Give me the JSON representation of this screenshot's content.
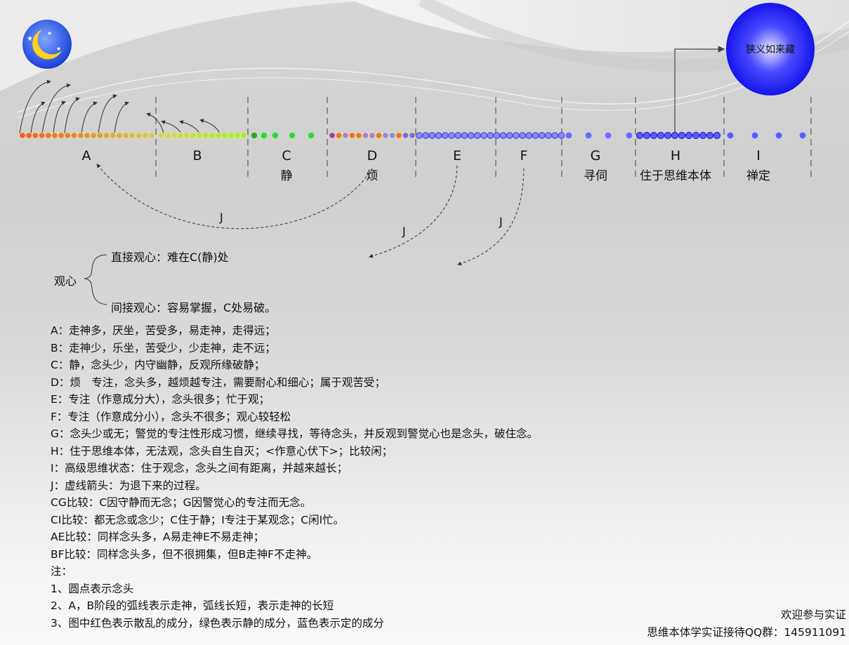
{
  "colors": {
    "scattered": "#e8503a",
    "calm": "#33d633",
    "settled": "#4848ff",
    "ball": "#1010ee"
  },
  "big_ball": {
    "label": "狭义如来藏"
  },
  "stages": [
    {
      "letter": "A",
      "sub": ""
    },
    {
      "letter": "B",
      "sub": ""
    },
    {
      "letter": "C",
      "sub": "静"
    },
    {
      "letter": "D",
      "sub": "烦"
    },
    {
      "letter": "E",
      "sub": ""
    },
    {
      "letter": "F",
      "sub": ""
    },
    {
      "letter": "G",
      "sub": "寻伺"
    },
    {
      "letter": "H",
      "sub": "住于思维本体"
    },
    {
      "letter": "I",
      "sub": "禅定"
    }
  ],
  "j_labels": [
    "J",
    "J",
    "J"
  ],
  "bracket": {
    "root": "观心",
    "direct": "直接观心：难在C(静)处",
    "indirect": "间接观心：容易掌握，C处易破。"
  },
  "notes": [
    "A：走神多，厌坐，苦受多，易走神，走得远；",
    "B：走神少，乐坐，苦受少，少走神，走不远；",
    "C：静，念头少，内守幽静，反观所缘破静；",
    "D：烦　专注，念头多，越烦越专注，需要耐心和细心；属于观苦受；",
    "E：专注（作意成分大），念头很多；忙于观；",
    "F：专注（作意成分小），念头不很多；观心较轻松",
    "G：念头少或无；警觉的专注性形成习惯，继续寻找，等待念头，并反观到警觉心也是念头，破住念。",
    "H：住于思维本体，无法观，念头自生自灭；<作意心伏下>；比较闲；",
    "I：高级思维状态：住于观念，念头之间有距离，并越来越长；",
    "J：虚线箭头：为退下来的过程。",
    "CG比较：C因守静而无念；G因警觉心的专注而无念。",
    "CI比较：都无念或念少；C住于静；I专注于某观念；C闲I忙。",
    "AE比较：同样念头多，A易走神E不易走神；",
    "BF比较：同样念头多，但不很拥集，但B走神F不走神。",
    "注：",
    "1、圆点表示念头",
    "2、A，B阶段的弧线表示走神，弧线长短，表示走神的长短",
    "3、图中红色表示散乱的成分，绿色表示静的成分，蓝色表示定的成分"
  ],
  "footer": {
    "line1": "欢迎参与实证",
    "line2": "思维本体学实证接待QQ群：145911091"
  }
}
